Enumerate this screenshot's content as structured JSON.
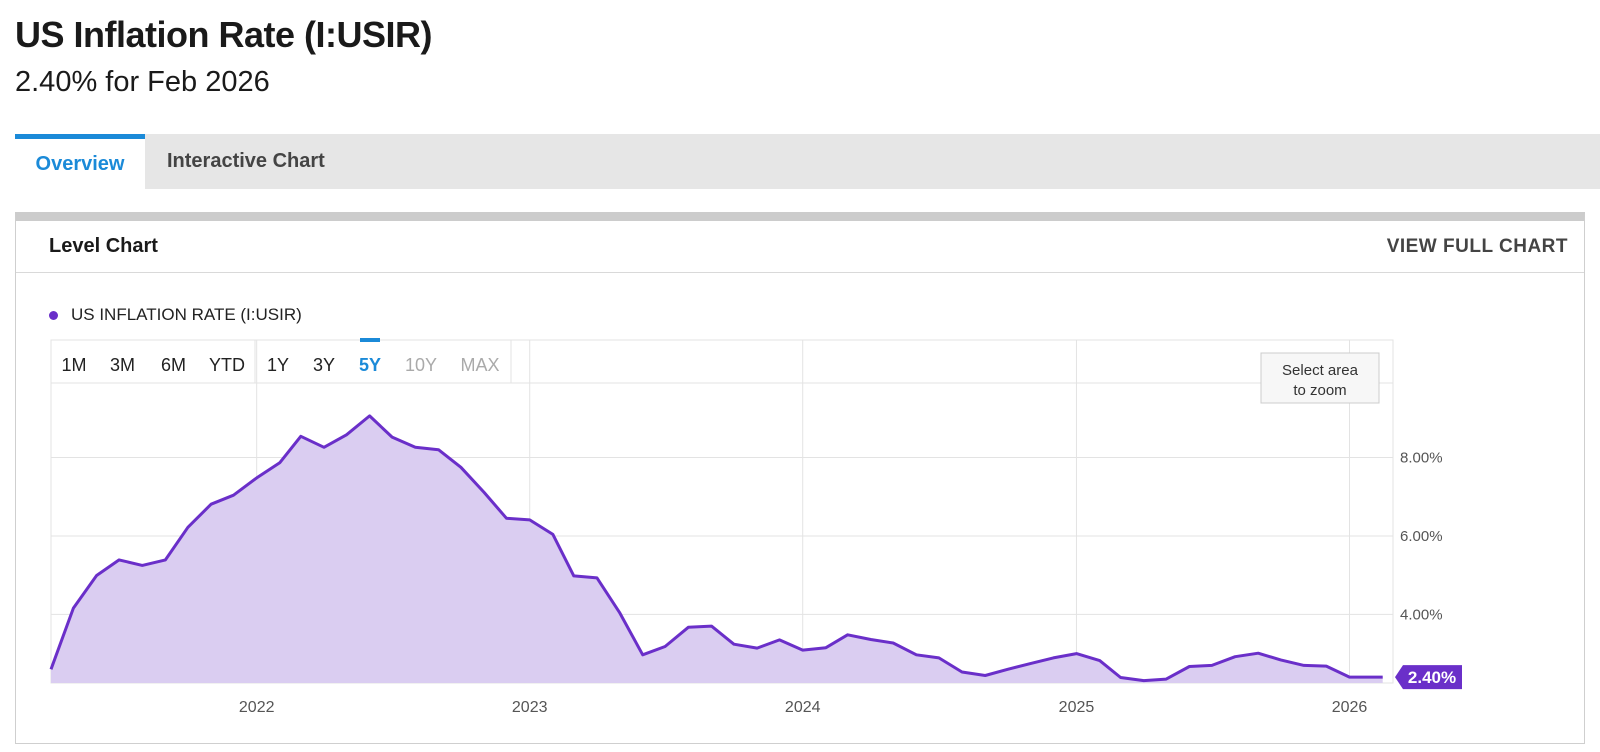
{
  "header": {
    "title": "US Inflation Rate (I:USIR)",
    "subtitle": "2.40% for Feb 2026"
  },
  "tabs": [
    {
      "label": "Overview",
      "active": true
    },
    {
      "label": "Interactive Chart",
      "active": false
    }
  ],
  "card": {
    "title": "Level Chart",
    "view_full_label": "VIEW FULL CHART",
    "legend_label": "US INFLATION RATE (I:USIR)",
    "ranges": [
      "1M",
      "3M",
      "6M",
      "YTD",
      "1Y",
      "3Y",
      "5Y",
      "10Y",
      "MAX"
    ],
    "active_range": "5Y",
    "disabled_ranges": [
      "10Y",
      "MAX"
    ],
    "zoom_hint": [
      "Select area",
      "to zoom"
    ]
  },
  "colors": {
    "line": "#6a2fc9",
    "fill": "#dacdf1",
    "accent": "#1b8ad8",
    "grid": "#e3e3e3"
  },
  "chart_data": {
    "type": "area",
    "series": [
      {
        "name": "US INFLATION RATE (I:USIR)",
        "x": [
          "2021-04",
          "2021-05",
          "2021-06",
          "2021-07",
          "2021-08",
          "2021-09",
          "2021-10",
          "2021-11",
          "2021-12",
          "2022-01",
          "2022-02",
          "2022-03",
          "2022-04",
          "2022-05",
          "2022-06",
          "2022-07",
          "2022-08",
          "2022-09",
          "2022-10",
          "2022-11",
          "2022-12",
          "2023-01",
          "2023-02",
          "2023-03",
          "2023-04",
          "2023-05",
          "2023-06",
          "2023-07",
          "2023-08",
          "2023-09",
          "2023-10",
          "2023-11",
          "2023-12",
          "2024-01",
          "2024-02",
          "2024-03",
          "2024-04",
          "2024-05",
          "2024-06",
          "2024-07",
          "2024-08",
          "2024-09",
          "2024-10",
          "2024-11",
          "2024-12",
          "2025-01",
          "2025-02",
          "2025-03",
          "2025-04",
          "2025-05",
          "2025-06",
          "2025-07",
          "2025-08",
          "2025-09",
          "2025-10",
          "2025-11",
          "2025-12",
          "2026-01",
          "2026-02"
        ],
        "values": [
          2.6,
          4.16,
          4.99,
          5.39,
          5.25,
          5.39,
          6.22,
          6.81,
          7.04,
          7.48,
          7.87,
          8.54,
          8.26,
          8.58,
          9.06,
          8.52,
          8.26,
          8.2,
          7.75,
          7.11,
          6.45,
          6.41,
          6.04,
          4.98,
          4.93,
          4.05,
          2.97,
          3.18,
          3.67,
          3.7,
          3.24,
          3.14,
          3.35,
          3.09,
          3.15,
          3.48,
          3.36,
          3.27,
          2.97,
          2.89,
          2.53,
          2.44,
          2.6,
          2.75,
          2.89,
          3.0,
          2.82,
          2.39,
          2.31,
          2.35,
          2.67,
          2.7,
          2.92,
          3.01,
          2.84,
          2.7,
          2.68,
          2.4,
          2.4
        ]
      }
    ],
    "x_ticks": [
      "2022",
      "2023",
      "2024",
      "2025",
      "2026"
    ],
    "y_ticks": [
      "4.00%",
      "6.00%",
      "8.00%"
    ],
    "ylim": [
      2.25,
      9.9
    ],
    "last_value_label": "2.40%",
    "grid": true,
    "legend_position": "top-left"
  }
}
